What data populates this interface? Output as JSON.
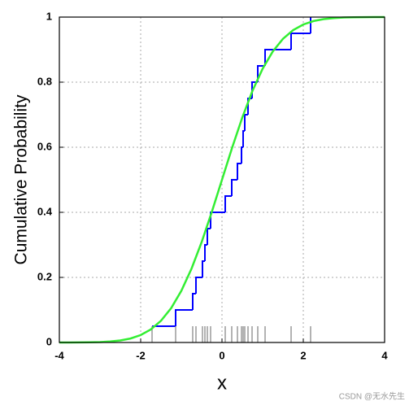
{
  "chart_data": {
    "type": "ecdf",
    "xlabel": "x",
    "ylabel": "Cumulative  Probability",
    "xlim": [
      -4,
      4
    ],
    "ylim": [
      0,
      1
    ],
    "xticks": [
      -4,
      -2,
      0,
      2,
      4
    ],
    "yticks": [
      0,
      0.2,
      0.4,
      0.6,
      0.8,
      1
    ],
    "grid": true,
    "rug": true,
    "rug_color": "#808080",
    "series": [
      {
        "type": "step",
        "color": "#0000ff",
        "x": [
          -1.72,
          -1.14,
          -0.72,
          -0.64,
          -0.48,
          -0.42,
          -0.36,
          -0.28,
          0.08,
          0.24,
          0.38,
          0.48,
          0.52,
          0.56,
          0.64,
          0.74,
          0.88,
          1.06,
          1.7,
          2.18
        ],
        "values": [
          0.05,
          0.1,
          0.15,
          0.2,
          0.25,
          0.3,
          0.35,
          0.4,
          0.45,
          0.5,
          0.55,
          0.6,
          0.65,
          0.7,
          0.75,
          0.8,
          0.85,
          0.9,
          0.95,
          1
        ]
      },
      {
        "type": "line",
        "color": "#33ee33",
        "x": [
          -4,
          -3.75,
          -3.5,
          -3.25,
          -3,
          -2.75,
          -2.5,
          -2.25,
          -2,
          -1.75,
          -1.5,
          -1.25,
          -1,
          -0.75,
          -0.5,
          -0.25,
          0,
          0.25,
          0.5,
          0.75,
          1,
          1.25,
          1.5,
          1.75,
          2,
          2.25,
          2.5,
          2.75,
          3,
          3.25,
          3.5,
          3.75,
          4
        ],
        "values": [
          0,
          0.0001,
          0.0002,
          0.0006,
          0.0013,
          0.003,
          0.0062,
          0.0122,
          0.0228,
          0.0401,
          0.0668,
          0.1056,
          0.1587,
          0.2266,
          0.3085,
          0.4013,
          0.5,
          0.5987,
          0.6915,
          0.7734,
          0.8413,
          0.8944,
          0.9332,
          0.9599,
          0.9772,
          0.9878,
          0.9938,
          0.997,
          0.9987,
          0.9994,
          0.9998,
          0.9999,
          1
        ]
      }
    ]
  },
  "watermark": "CSDN @无水先生"
}
